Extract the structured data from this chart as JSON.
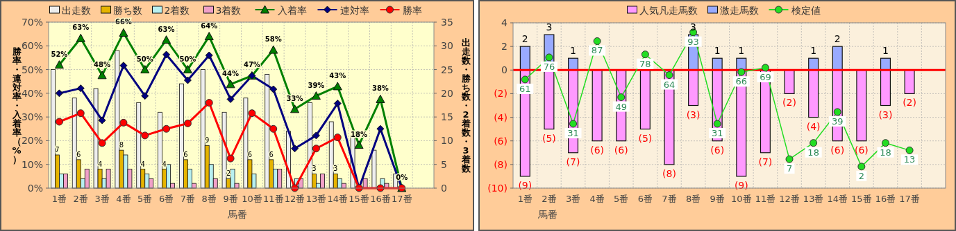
{
  "chart_data": [
    {
      "type": "bar",
      "xlabel": "馬番",
      "ylabel": "勝率・連対率・入着率（%）",
      "y2label": "出走数・勝ち数・2着数・3着数",
      "categories": [
        "1番",
        "2番",
        "3番",
        "4番",
        "5番",
        "6番",
        "7番",
        "8番",
        "9番",
        "10番",
        "11番",
        "12番",
        "13番",
        "14番",
        "15番",
        "16番",
        "17番",
        null
      ],
      "ylim": [
        0,
        70
      ],
      "yticks": [
        {
          "value": 0,
          "label": "0%"
        },
        {
          "value": 10,
          "label": "10%"
        },
        {
          "value": 20,
          "label": "20%"
        },
        {
          "value": 30,
          "label": "30%"
        },
        {
          "value": 40,
          "label": "40%"
        },
        {
          "value": 50,
          "label": "50%"
        },
        {
          "value": 60,
          "label": "60%"
        },
        {
          "value": 70,
          "label": "70%"
        }
      ],
      "y2lim": [
        0,
        35
      ],
      "y2ticks": [
        0,
        5,
        10,
        15,
        20,
        25,
        30,
        35
      ],
      "grid": true,
      "legend": "top",
      "series": [
        {
          "name": "出走数",
          "axis": "y2",
          "color": "#eeeeee",
          "values": [
            25,
            19,
            21,
            29,
            18,
            16,
            22,
            25,
            16,
            19,
            24,
            12,
            18,
            14,
            11,
            8,
            3,
            null
          ]
        },
        {
          "name": "勝ち数",
          "axis": "y2",
          "color": "#e6b400",
          "values": [
            7,
            6,
            4,
            8,
            4,
            4,
            6,
            9,
            2,
            6,
            6,
            0,
            3,
            3,
            0,
            0,
            0,
            null
          ],
          "value_labels": [
            "7",
            "6",
            "4",
            "8",
            "4",
            "4",
            "6",
            "9",
            "2",
            "6",
            "6",
            null,
            "3",
            "3",
            null,
            null,
            null,
            null
          ]
        },
        {
          "name": "2着数",
          "axis": "y2",
          "color": "#b8f0f0",
          "values": [
            3,
            2,
            2,
            7,
            3,
            5,
            4,
            5,
            4,
            3,
            4,
            2,
            1,
            2,
            0,
            2,
            0,
            null
          ]
        },
        {
          "name": "3着数",
          "axis": "y2",
          "color": "#f0a0c8",
          "values": [
            3,
            4,
            4,
            4,
            2,
            1,
            1,
            2,
            1,
            0,
            4,
            2,
            3,
            1,
            2,
            1,
            0,
            null
          ]
        },
        {
          "name": "入着率",
          "type": "line",
          "axis": "y",
          "color": "#008000",
          "marker": "triangle",
          "values": [
            52,
            63.2,
            47.6,
            65.5,
            50,
            62.5,
            50,
            64,
            43.8,
            47.4,
            58.3,
            33.3,
            38.9,
            42.9,
            18.2,
            37.5,
            0,
            null
          ],
          "value_labels": [
            "52%",
            "63%",
            "48%",
            "66%",
            "50%",
            "63%",
            "50%",
            "64%",
            "44%",
            "47%",
            "58%",
            "33%",
            "39%",
            "43%",
            "18%",
            "38%",
            "0%",
            null
          ]
        },
        {
          "name": "連対率",
          "type": "line",
          "axis": "y",
          "color": "#000080",
          "marker": "diamond",
          "values": [
            40,
            42.1,
            28.6,
            51.7,
            38.9,
            56.3,
            45.5,
            56,
            37.5,
            47.4,
            41.7,
            16.7,
            22.2,
            35.7,
            0,
            25,
            0,
            null
          ]
        },
        {
          "name": "勝率",
          "type": "line",
          "axis": "y",
          "color": "#ff0000",
          "marker": "circle",
          "values": [
            28,
            31.6,
            19,
            27.6,
            22.2,
            25,
            27.3,
            36,
            12.5,
            31.6,
            25,
            0,
            16.7,
            21.4,
            0,
            0,
            0,
            null
          ]
        }
      ]
    },
    {
      "type": "bar",
      "stacked": true,
      "xlabel": "馬番",
      "categories": [
        "1番",
        "2番",
        "3番",
        "4番",
        "5番",
        "6番",
        "7番",
        "8番",
        "9番",
        "10番",
        "11番",
        "12番",
        "13番",
        "14番",
        "15番",
        "16番",
        "17番",
        null
      ],
      "ylim": [
        -10,
        4
      ],
      "yticks": [
        {
          "value": 4,
          "label": "4"
        },
        {
          "value": 2,
          "label": "2"
        },
        {
          "value": 0,
          "label": "0"
        },
        {
          "value": -2,
          "label": "(2)"
        },
        {
          "value": -4,
          "label": "(4)"
        },
        {
          "value": -6,
          "label": "(6)"
        },
        {
          "value": -8,
          "label": "(8)"
        },
        {
          "value": -10,
          "label": "(10)"
        }
      ],
      "y2lim": [
        -12.6,
        99.4
      ],
      "grid": true,
      "legend": "top",
      "ref_lines": [
        {
          "axis": "y",
          "value": 0,
          "color": "#ff0000"
        }
      ],
      "series": [
        {
          "name": "人気凡走馬数",
          "color": "#ff99ff",
          "values": [
            -9,
            -5,
            -7,
            -6,
            -6,
            -5,
            -8,
            -3,
            -6,
            -9,
            -7,
            -2,
            -4,
            -6,
            -6,
            -3,
            -2,
            null
          ],
          "value_labels": [
            "(9)",
            "(5)",
            "(7)",
            "(6)",
            "(6)",
            "(5)",
            "(8)",
            "(3)",
            "(6)",
            "(9)",
            "(7)",
            "(2)",
            "(4)",
            "(6)",
            "(6)",
            "(3)",
            "(2)",
            null
          ]
        },
        {
          "name": "激走馬数",
          "color": "#99aaff",
          "values": [
            2,
            3,
            1,
            0,
            0,
            0,
            0,
            3,
            1,
            1,
            0,
            0,
            1,
            2,
            0,
            1,
            0,
            null
          ],
          "value_labels": [
            "2",
            "3",
            "1",
            null,
            null,
            null,
            null,
            "3",
            "1",
            "1",
            null,
            null,
            "1",
            "2",
            null,
            "1",
            null,
            null
          ]
        },
        {
          "name": "検定値",
          "type": "line",
          "axis": "y2",
          "color": "#22dd22",
          "marker": "circle",
          "values": [
            61,
            76,
            31,
            87,
            49,
            78,
            64,
            93,
            31,
            66,
            69,
            7,
            18,
            39,
            2,
            18,
            13,
            null
          ],
          "value_labels": [
            "61",
            "76",
            "31",
            "87",
            "49",
            "78",
            "64",
            "93",
            "31",
            "66",
            "69",
            "7",
            "18",
            "39",
            "2",
            "18",
            "13",
            null
          ]
        }
      ]
    }
  ]
}
